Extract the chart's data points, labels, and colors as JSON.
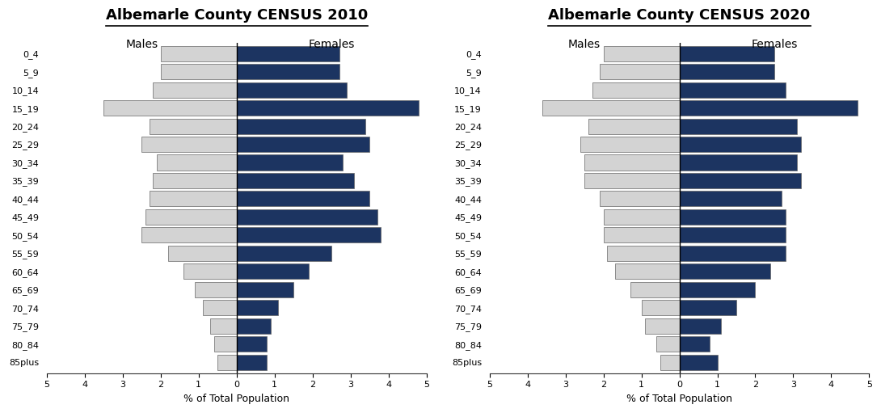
{
  "age_groups": [
    "85plus",
    "80_84",
    "75_79",
    "70_74",
    "65_69",
    "60_64",
    "55_59",
    "50_54",
    "45_49",
    "40_44",
    "35_39",
    "30_34",
    "25_29",
    "20_24",
    "15_19",
    "10_14",
    "5_9",
    "0_4"
  ],
  "males_2010": [
    0.5,
    0.6,
    0.7,
    0.9,
    1.1,
    1.4,
    1.8,
    2.5,
    2.4,
    2.3,
    2.2,
    2.1,
    2.5,
    2.3,
    3.5,
    2.2,
    2.0,
    2.0
  ],
  "females_2010": [
    0.8,
    0.8,
    0.9,
    1.1,
    1.5,
    1.9,
    2.5,
    3.8,
    3.7,
    3.5,
    3.1,
    2.8,
    3.5,
    3.4,
    4.8,
    2.9,
    2.7,
    2.7
  ],
  "males_2020": [
    0.5,
    0.6,
    0.9,
    1.0,
    1.3,
    1.7,
    1.9,
    2.0,
    2.0,
    2.1,
    2.5,
    2.5,
    2.6,
    2.4,
    3.6,
    2.3,
    2.1,
    2.0
  ],
  "females_2020": [
    1.0,
    0.8,
    1.1,
    1.5,
    2.0,
    2.4,
    2.8,
    2.8,
    2.8,
    2.7,
    3.2,
    3.1,
    3.2,
    3.1,
    4.7,
    2.8,
    2.5,
    2.5
  ],
  "title_2010": "Albemarle County CENSUS 2010",
  "title_2020": "Albemarle County CENSUS 2020",
  "xlabel": "% of Total Population",
  "males_label": "Males",
  "females_label": "Females",
  "male_color": "#d3d3d3",
  "female_color": "#1c3461",
  "xlim": 5,
  "bar_edge_color": "#666666",
  "background_color": "#ffffff",
  "title_fontsize": 13,
  "axis_fontsize": 9,
  "tick_fontsize": 8,
  "label_fontsize": 10,
  "bar_linewidth": 0.5,
  "xtick_labels": [
    "5",
    "4",
    "3",
    "2",
    "1",
    "0",
    "1",
    "2",
    "3",
    "4",
    "5"
  ],
  "xtick_vals": [
    -5,
    -4,
    -3,
    -2,
    -1,
    0,
    1,
    2,
    3,
    4,
    5
  ]
}
